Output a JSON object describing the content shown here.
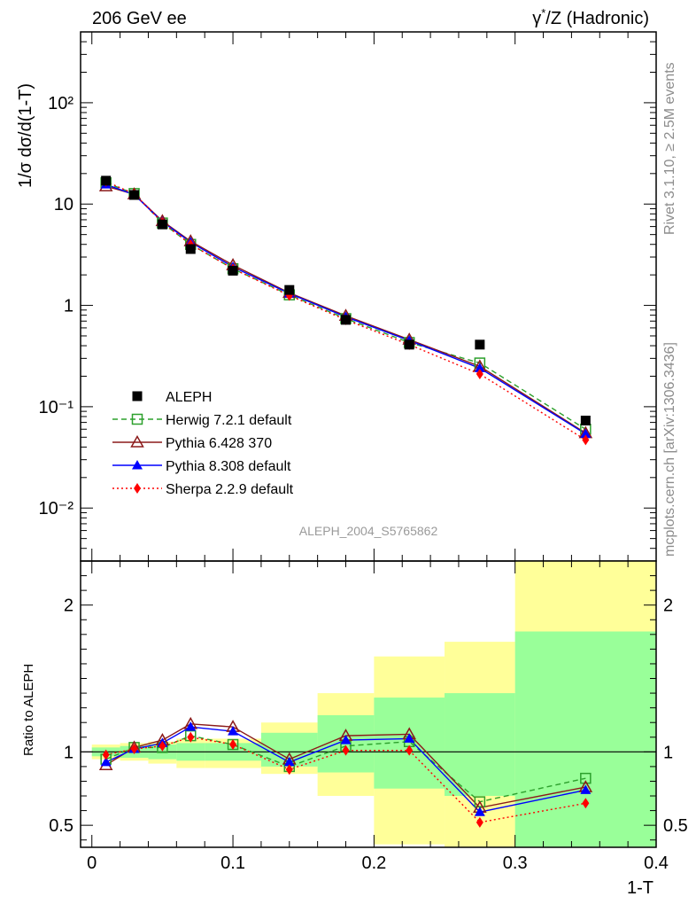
{
  "header": {
    "left": "206 GeV ee",
    "right_pre": "γ",
    "right_sup": "*",
    "right_post": "/Z (Hadronic)"
  },
  "side_texts": {
    "rivet": "Rivet 3.1.10, ≥ 2.5M events",
    "mcplots": "mcplots.cern.ch [arXiv:1306.3436]"
  },
  "watermark": "ALEPH_2004_S5765862",
  "colors": {
    "data": "#000000",
    "herwig": "#2ca02c",
    "pythia6": "#8b1a1a",
    "pythia8": "#0000ff",
    "sherpa": "#ff0000",
    "band_yellow": "#ffff99",
    "band_green": "#99ff99"
  },
  "chart_data": [
    {
      "type": "line",
      "panel": "main",
      "ylabel": "1/σ  dσ/d(1-T)",
      "yscale": "log",
      "ylim": [
        0.003,
        500
      ],
      "xlim": [
        -0.008,
        0.4
      ],
      "ytick_labels": [
        "10⁻²",
        "10⁻¹",
        "1",
        "10",
        "10²"
      ],
      "x": [
        0.01,
        0.03,
        0.05,
        0.07,
        0.1,
        0.14,
        0.18,
        0.225,
        0.275,
        0.35
      ],
      "x_edges": [
        0.0,
        0.02,
        0.04,
        0.06,
        0.08,
        0.12,
        0.16,
        0.2,
        0.25,
        0.3,
        0.4
      ],
      "series": [
        {
          "name": "ALEPH",
          "key": "data",
          "marker": "square-filled",
          "values": [
            17.0,
            12.3,
            6.3,
            3.6,
            2.2,
            1.42,
            0.72,
            0.41,
            0.41,
            0.073
          ]
        },
        {
          "name": "Herwig 7.2.1 default",
          "key": "herwig",
          "marker": "square-open",
          "dash": "6,4",
          "values": [
            16.2,
            12.7,
            6.5,
            4.0,
            2.3,
            1.27,
            0.74,
            0.43,
            0.27,
            0.06
          ]
        },
        {
          "name": "Pythia 6.428 370",
          "key": "pythia6",
          "marker": "triangle-open",
          "dash": "",
          "values": [
            15.0,
            12.5,
            6.8,
            4.3,
            2.5,
            1.33,
            0.79,
            0.46,
            0.25,
            0.055
          ]
        },
        {
          "name": "Pythia 8.308 default",
          "key": "pythia8",
          "marker": "triangle-filled",
          "dash": "",
          "values": [
            15.6,
            12.4,
            6.7,
            4.2,
            2.4,
            1.31,
            0.77,
            0.45,
            0.24,
            0.054
          ]
        },
        {
          "name": "Sherpa 2.2.9 default",
          "key": "sherpa",
          "marker": "diamond-filled",
          "dash": "2,3",
          "values": [
            16.7,
            12.6,
            6.6,
            4.0,
            2.3,
            1.25,
            0.72,
            0.41,
            0.21,
            0.047
          ]
        }
      ]
    },
    {
      "type": "line",
      "panel": "ratio",
      "ylabel": "Ratio to ALEPH",
      "xlabel": "1-T",
      "ylim": [
        0.35,
        2.3
      ],
      "xlim": [
        -0.008,
        0.4
      ],
      "yticks": [
        0.5,
        1,
        2
      ],
      "ytick_labels": [
        "0.5",
        "1",
        "2"
      ],
      "xticks": [
        0,
        0.1,
        0.2,
        0.3,
        0.4
      ],
      "xtick_labels": [
        "0",
        "0.1",
        "0.2",
        "0.3",
        "0.4"
      ],
      "x": [
        0.01,
        0.03,
        0.05,
        0.07,
        0.1,
        0.14,
        0.18,
        0.225,
        0.275,
        0.35
      ],
      "band_yellow": [
        [
          0.95,
          1.05
        ],
        [
          0.94,
          1.06
        ],
        [
          0.92,
          1.07
        ],
        [
          0.89,
          1.09
        ],
        [
          0.89,
          1.09
        ],
        [
          0.85,
          1.2
        ],
        [
          0.7,
          1.4
        ],
        [
          0.37,
          1.65
        ],
        [
          0.35,
          1.75
        ],
        [
          0.35,
          2.3
        ]
      ],
      "band_green": [
        [
          0.97,
          1.03
        ],
        [
          0.96,
          1.04
        ],
        [
          0.95,
          1.05
        ],
        [
          0.94,
          1.06
        ],
        [
          0.94,
          1.06
        ],
        [
          0.9,
          1.13
        ],
        [
          0.86,
          1.25
        ],
        [
          0.75,
          1.37
        ],
        [
          0.7,
          1.4
        ],
        [
          0.35,
          1.82
        ]
      ],
      "series": [
        {
          "name": "Herwig 7.2.1 default",
          "key": "herwig",
          "marker": "square-open",
          "dash": "6,4",
          "values": [
            0.95,
            1.03,
            1.03,
            1.11,
            1.05,
            0.9,
            1.04,
            1.07,
            0.66,
            0.82
          ]
        },
        {
          "name": "Pythia 6.428 370",
          "key": "pythia6",
          "marker": "triangle-open",
          "dash": "",
          "values": [
            0.91,
            1.03,
            1.08,
            1.19,
            1.17,
            0.95,
            1.11,
            1.12,
            0.62,
            0.76
          ]
        },
        {
          "name": "Pythia 8.308 default",
          "key": "pythia8",
          "marker": "triangle-filled",
          "dash": "",
          "values": [
            0.93,
            1.02,
            1.06,
            1.17,
            1.14,
            0.93,
            1.08,
            1.09,
            0.59,
            0.74
          ]
        },
        {
          "name": "Sherpa 2.2.9 default",
          "key": "sherpa",
          "marker": "diamond-filled",
          "dash": "2,3",
          "values": [
            0.98,
            1.02,
            1.04,
            1.1,
            1.05,
            0.88,
            1.01,
            1.01,
            0.52,
            0.65
          ]
        }
      ]
    }
  ]
}
